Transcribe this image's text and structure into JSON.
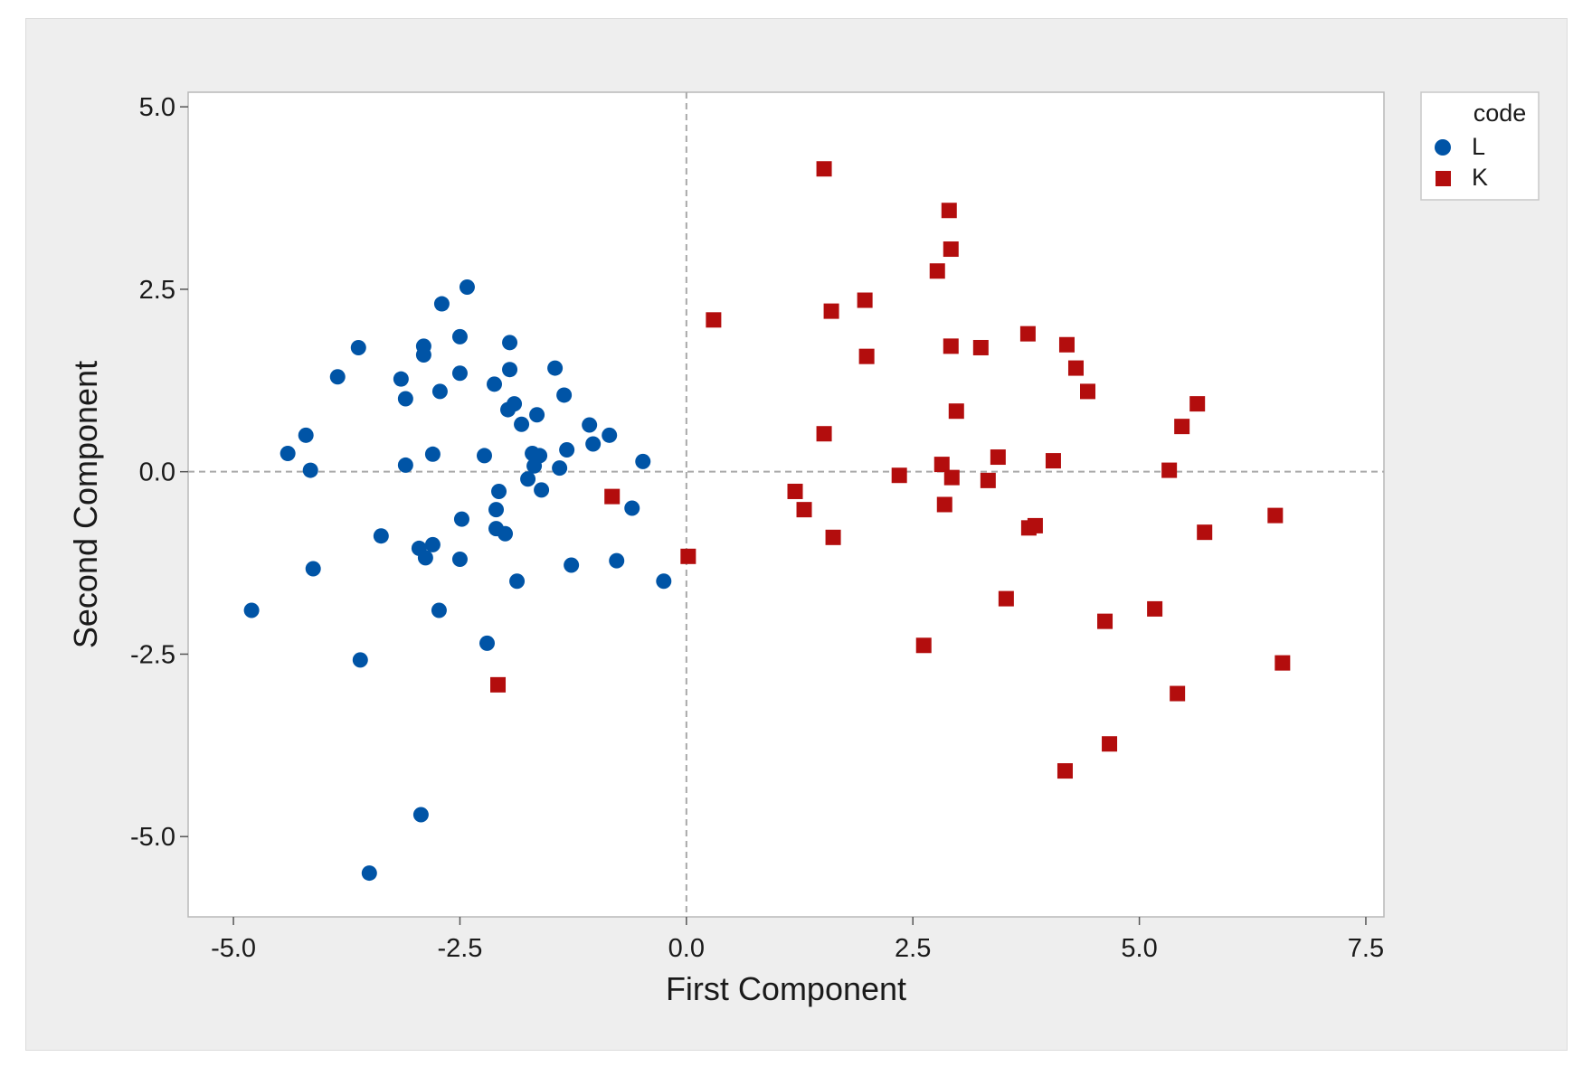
{
  "chart_data": {
    "type": "scatter",
    "xlabel": "First Component",
    "ylabel": "Second Component",
    "xlim": [
      -5.5,
      7.7
    ],
    "ylim": [
      -6.1,
      5.2
    ],
    "xticks": [
      -5.0,
      -2.5,
      0.0,
      2.5,
      5.0,
      7.5
    ],
    "yticks": [
      -5.0,
      -2.5,
      0.0,
      2.5,
      5.0
    ],
    "xtick_labels": [
      "-5.0",
      "-2.5",
      "0.0",
      "2.5",
      "5.0",
      "7.5"
    ],
    "ytick_labels": [
      "-5.0",
      "-2.5",
      "0.0",
      "2.5",
      "5.0"
    ],
    "reference_lines": {
      "x": 0.0,
      "y": 0.0,
      "style": "dashed"
    },
    "grid": false,
    "legend": {
      "title": "code",
      "placement": "right"
    },
    "series": [
      {
        "name": "L",
        "marker": "circle",
        "color": "#0054a6",
        "points": [
          [
            -4.8,
            -1.9
          ],
          [
            -4.4,
            0.25
          ],
          [
            -4.2,
            0.5
          ],
          [
            -4.15,
            0.02
          ],
          [
            -4.12,
            -1.33
          ],
          [
            -3.85,
            1.3
          ],
          [
            -3.62,
            1.7
          ],
          [
            -3.6,
            -2.58
          ],
          [
            -3.5,
            -5.5
          ],
          [
            -3.37,
            -0.88
          ],
          [
            -3.15,
            1.27
          ],
          [
            -3.1,
            1.0
          ],
          [
            -3.1,
            0.09
          ],
          [
            -2.95,
            -1.05
          ],
          [
            -2.93,
            -4.7
          ],
          [
            -2.9,
            1.72
          ],
          [
            -2.9,
            1.6
          ],
          [
            -2.88,
            -1.18
          ],
          [
            -2.8,
            -1.0
          ],
          [
            -2.8,
            0.24
          ],
          [
            -2.73,
            -1.9
          ],
          [
            -2.72,
            1.1
          ],
          [
            -2.7,
            2.3
          ],
          [
            -2.5,
            1.85
          ],
          [
            -2.5,
            1.35
          ],
          [
            -2.5,
            -1.2
          ],
          [
            -2.48,
            -0.65
          ],
          [
            -2.42,
            2.53
          ],
          [
            -2.23,
            0.22
          ],
          [
            -2.2,
            -2.35
          ],
          [
            -2.12,
            1.2
          ],
          [
            -2.1,
            -0.52
          ],
          [
            -2.1,
            -0.78
          ],
          [
            -2.07,
            -0.27
          ],
          [
            -2.0,
            -0.85
          ],
          [
            -1.97,
            0.85
          ],
          [
            -1.95,
            1.4
          ],
          [
            -1.95,
            1.77
          ],
          [
            -1.9,
            0.93
          ],
          [
            -1.87,
            -1.5
          ],
          [
            -1.82,
            0.65
          ],
          [
            -1.75,
            -0.1
          ],
          [
            -1.7,
            0.25
          ],
          [
            -1.68,
            0.08
          ],
          [
            -1.65,
            0.78
          ],
          [
            -1.62,
            0.22
          ],
          [
            -1.6,
            -0.25
          ],
          [
            -1.45,
            1.42
          ],
          [
            -1.4,
            0.05
          ],
          [
            -1.35,
            1.05
          ],
          [
            -1.32,
            0.3
          ],
          [
            -1.27,
            -1.28
          ],
          [
            -1.07,
            0.64
          ],
          [
            -1.03,
            0.38
          ],
          [
            -0.85,
            0.5
          ],
          [
            -0.77,
            -1.22
          ],
          [
            -0.6,
            -0.5
          ],
          [
            -0.48,
            0.14
          ],
          [
            -0.25,
            -1.5
          ]
        ]
      },
      {
        "name": "K",
        "marker": "square",
        "color": "#b30d0d",
        "points": [
          [
            -2.08,
            -2.92
          ],
          [
            -0.82,
            -0.34
          ],
          [
            0.02,
            -1.16
          ],
          [
            0.3,
            2.08
          ],
          [
            1.2,
            -0.27
          ],
          [
            1.3,
            -0.52
          ],
          [
            1.52,
            4.15
          ],
          [
            1.52,
            0.52
          ],
          [
            1.6,
            2.2
          ],
          [
            1.62,
            -0.9
          ],
          [
            1.97,
            2.35
          ],
          [
            1.99,
            1.58
          ],
          [
            2.35,
            -0.05
          ],
          [
            2.62,
            -2.38
          ],
          [
            2.77,
            2.75
          ],
          [
            2.82,
            0.1
          ],
          [
            2.85,
            -0.45
          ],
          [
            2.9,
            3.58
          ],
          [
            2.92,
            3.05
          ],
          [
            2.92,
            1.72
          ],
          [
            2.93,
            -0.08
          ],
          [
            2.98,
            0.83
          ],
          [
            3.25,
            1.7
          ],
          [
            3.33,
            -0.12
          ],
          [
            3.44,
            0.2
          ],
          [
            3.53,
            -1.74
          ],
          [
            3.77,
            1.89
          ],
          [
            3.78,
            -0.77
          ],
          [
            3.85,
            -0.74
          ],
          [
            4.05,
            0.15
          ],
          [
            4.18,
            -4.1
          ],
          [
            4.2,
            1.74
          ],
          [
            4.3,
            1.42
          ],
          [
            4.43,
            1.1
          ],
          [
            4.62,
            -2.05
          ],
          [
            4.67,
            -3.73
          ],
          [
            5.17,
            -1.88
          ],
          [
            5.33,
            0.02
          ],
          [
            5.42,
            -3.04
          ],
          [
            5.47,
            0.62
          ],
          [
            5.64,
            0.93
          ],
          [
            5.72,
            -0.83
          ],
          [
            6.5,
            -0.6
          ],
          [
            6.58,
            -2.62
          ]
        ]
      }
    ]
  }
}
